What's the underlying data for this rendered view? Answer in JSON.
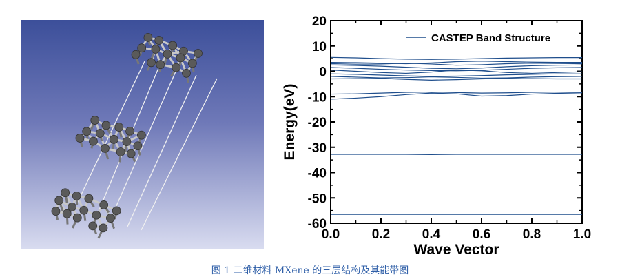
{
  "figure": {
    "caption": "图 1 二维材料 MXene 的三层结构及其能带图",
    "structure_panel": {
      "background_top": "#3c4f9a",
      "background_bottom": "#d9dcf0",
      "atom_color": "#5a5a5a",
      "bond_color": "#c8c8c8",
      "link_color": "#f0f0f0"
    }
  },
  "chart_data": {
    "type": "line",
    "title": "",
    "xlabel": "Wave Vector",
    "ylabel": "Energy(eV)",
    "xlim": [
      0.0,
      1.0
    ],
    "ylim": [
      -60,
      20
    ],
    "xticks": [
      0.0,
      0.2,
      0.4,
      0.6,
      0.8,
      1.0
    ],
    "xtick_labels": [
      "0.0",
      "0.2",
      "0.4",
      "0.6",
      "0.8",
      "1.0"
    ],
    "yticks": [
      20,
      10,
      0,
      -10,
      -20,
      -30,
      -40,
      -50,
      -60
    ],
    "ytick_labels": [
      "20",
      "10",
      "0",
      "-10",
      "-20",
      "-30",
      "-40",
      "-50",
      "-60"
    ],
    "grid": false,
    "legend_position": "top-right",
    "legend": [
      "CASTEP Band Structure"
    ],
    "line_color": "#1f4e8c",
    "x": [
      0.0,
      0.1,
      0.2,
      0.3,
      0.4,
      0.5,
      0.6,
      0.7,
      0.8,
      0.9,
      1.0
    ],
    "series": [
      {
        "values": [
          5.5,
          5.3,
          5.0,
          4.8,
          4.7,
          4.8,
          5.0,
          5.2,
          5.3,
          5.4,
          5.4
        ]
      },
      {
        "values": [
          3.5,
          3.4,
          3.2,
          3.0,
          3.3,
          3.8,
          4.0,
          3.8,
          3.6,
          3.5,
          3.5
        ]
      },
      {
        "values": [
          3.0,
          2.8,
          2.9,
          3.2,
          2.9,
          2.4,
          2.6,
          3.0,
          3.2,
          3.1,
          3.0
        ]
      },
      {
        "values": [
          2.5,
          2.3,
          2.0,
          1.6,
          1.2,
          1.0,
          1.3,
          1.8,
          2.2,
          2.4,
          2.5
        ]
      },
      {
        "values": [
          1.5,
          1.2,
          0.8,
          0.5,
          0.3,
          0.2,
          0.4,
          0.8,
          1.2,
          1.4,
          1.5
        ]
      },
      {
        "values": [
          0.5,
          0.0,
          -0.5,
          -0.8,
          -0.3,
          0.5,
          0.2,
          -0.5,
          -0.8,
          -0.5,
          -0.2
        ]
      },
      {
        "values": [
          -1.0,
          -1.2,
          -1.5,
          -1.8,
          -2.0,
          -1.9,
          -1.7,
          -1.4,
          -1.2,
          -1.0,
          -1.0
        ]
      },
      {
        "values": [
          -2.0,
          -2.3,
          -2.6,
          -2.5,
          -2.2,
          -2.4,
          -2.7,
          -2.6,
          -2.3,
          -2.1,
          -2.0
        ]
      },
      {
        "values": [
          -3.0,
          -2.9,
          -2.8,
          -3.2,
          -3.5,
          -3.3,
          -3.0,
          -2.8,
          -2.9,
          -3.0,
          -3.0
        ]
      },
      {
        "values": [
          -9.0,
          -8.9,
          -8.6,
          -8.3,
          -8.2,
          -8.4,
          -8.6,
          -8.5,
          -8.3,
          -8.2,
          -8.2
        ]
      },
      {
        "values": [
          -11.0,
          -10.6,
          -10.0,
          -9.2,
          -8.6,
          -8.9,
          -9.8,
          -9.6,
          -9.0,
          -8.7,
          -8.5
        ]
      },
      {
        "values": [
          -32.8,
          -32.8,
          -32.8,
          -32.8,
          -32.9,
          -32.8,
          -32.8,
          -32.8,
          -32.8,
          -32.8,
          -32.8
        ]
      },
      {
        "values": [
          -56.5,
          -56.5,
          -56.5,
          -56.5,
          -56.5,
          -56.5,
          -56.5,
          -56.5,
          -56.5,
          -56.5,
          -56.5
        ]
      }
    ]
  }
}
